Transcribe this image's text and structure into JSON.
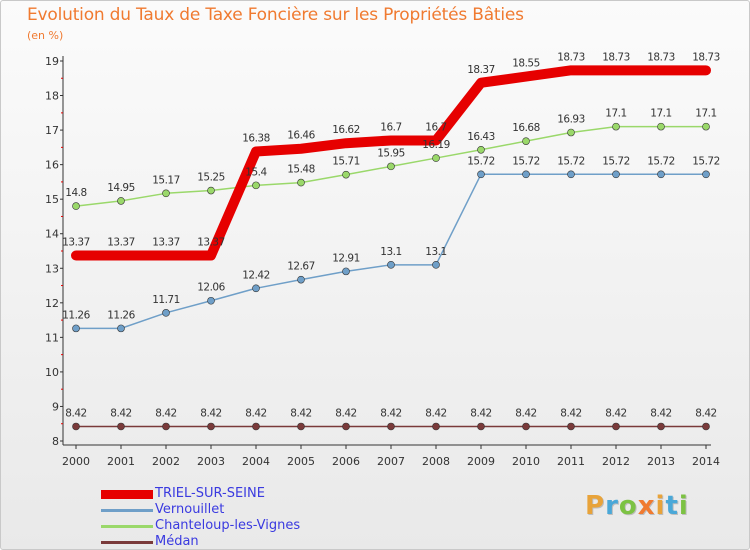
{
  "title": "Evolution du Taux de Taxe Foncière sur les Propriétés Bâties",
  "unit_label": "(en %)",
  "logo": {
    "text": "Proxiti",
    "colors": [
      "#e8a33a",
      "#4aa8d8",
      "#7cc243",
      "#f07a30",
      "#e8a33a",
      "#4aa8d8",
      "#7cc243"
    ]
  },
  "chart_data": {
    "type": "line",
    "x": [
      "2000",
      "2001",
      "2002",
      "2003",
      "2004",
      "2005",
      "2006",
      "2007",
      "2008",
      "2009",
      "2010",
      "2011",
      "2012",
      "2013",
      "2014"
    ],
    "ylim": [
      8,
      19
    ],
    "yticks": [
      8,
      9,
      10,
      11,
      12,
      13,
      14,
      15,
      16,
      17,
      18,
      19
    ],
    "grid": false,
    "legend": "bottom-left",
    "series": [
      {
        "name": "TRIEL-SUR-SEINE",
        "color": "#e60000",
        "values": [
          13.37,
          13.37,
          13.37,
          13.37,
          16.38,
          16.46,
          16.62,
          16.7,
          16.7,
          18.37,
          18.55,
          18.73,
          18.73,
          18.73,
          18.73
        ],
        "labels": [
          "13.37",
          "13.37",
          "13.37",
          "13.37",
          "16.38",
          "16.46",
          "16.62",
          "16.7",
          "16.7",
          "18.37",
          "18.55",
          "18.73",
          "18.73",
          "18.73",
          "18.73"
        ]
      },
      {
        "name": "Vernouillet",
        "color": "#6f9fc8",
        "values": [
          11.26,
          11.26,
          11.71,
          12.06,
          12.42,
          12.67,
          12.91,
          13.1,
          13.1,
          15.72,
          15.72,
          15.72,
          15.72,
          15.72,
          15.72
        ],
        "labels": [
          "11.26",
          "11.26",
          "11.71",
          "12.06",
          "12.42",
          "12.67",
          "12.91",
          "13.1",
          "13.1",
          "15.72",
          "15.72",
          "15.72",
          "15.72",
          "15.72",
          "15.72"
        ]
      },
      {
        "name": "Chanteloup-les-Vignes",
        "color": "#9ad86a",
        "values": [
          14.8,
          14.95,
          15.17,
          15.25,
          15.4,
          15.48,
          15.71,
          15.95,
          16.19,
          16.43,
          16.68,
          16.93,
          17.1,
          17.1,
          17.1
        ],
        "labels": [
          "14.8",
          "14.95",
          "15.17",
          "15.25",
          "15.4",
          "15.48",
          "15.71",
          "15.95",
          "16.19",
          "16.43",
          "16.68",
          "16.93",
          "17.1",
          "17.1",
          "17.1"
        ]
      },
      {
        "name": "Médan",
        "color": "#7a3a3a",
        "values": [
          8.42,
          8.42,
          8.42,
          8.42,
          8.42,
          8.42,
          8.42,
          8.42,
          8.42,
          8.42,
          8.42,
          8.42,
          8.42,
          8.42,
          8.42
        ],
        "labels": [
          "8.42",
          "8.42",
          "8.42",
          "8.42",
          "8.42",
          "8.42",
          "8.42",
          "8.42",
          "8.42",
          "8.42",
          "8.42",
          "8.42",
          "8.42",
          "8.42",
          "8.42"
        ]
      }
    ]
  }
}
